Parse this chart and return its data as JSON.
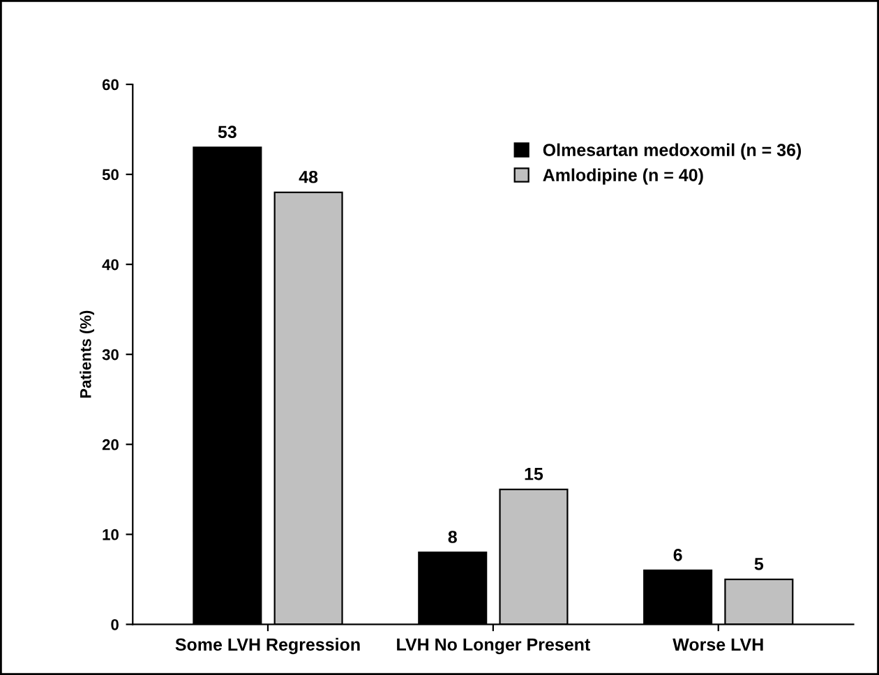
{
  "chart_data": {
    "type": "bar",
    "ylabel": "Patients (%)",
    "categories": [
      "Some LVH Regression",
      "LVH No Longer Present",
      "Worse LVH"
    ],
    "series": [
      {
        "name": "Olmesartan medoxomil (n = 36)",
        "color": "#000000",
        "values": [
          53,
          8,
          6
        ]
      },
      {
        "name": "Amlodipine (n = 40)",
        "color": "#c0c0c0",
        "values": [
          48,
          15,
          5
        ]
      }
    ],
    "ylim": [
      0,
      60
    ],
    "yticks": [
      0,
      10,
      20,
      30,
      40,
      50,
      60
    ],
    "data_labels": true,
    "legend": "top right",
    "grid": false
  }
}
